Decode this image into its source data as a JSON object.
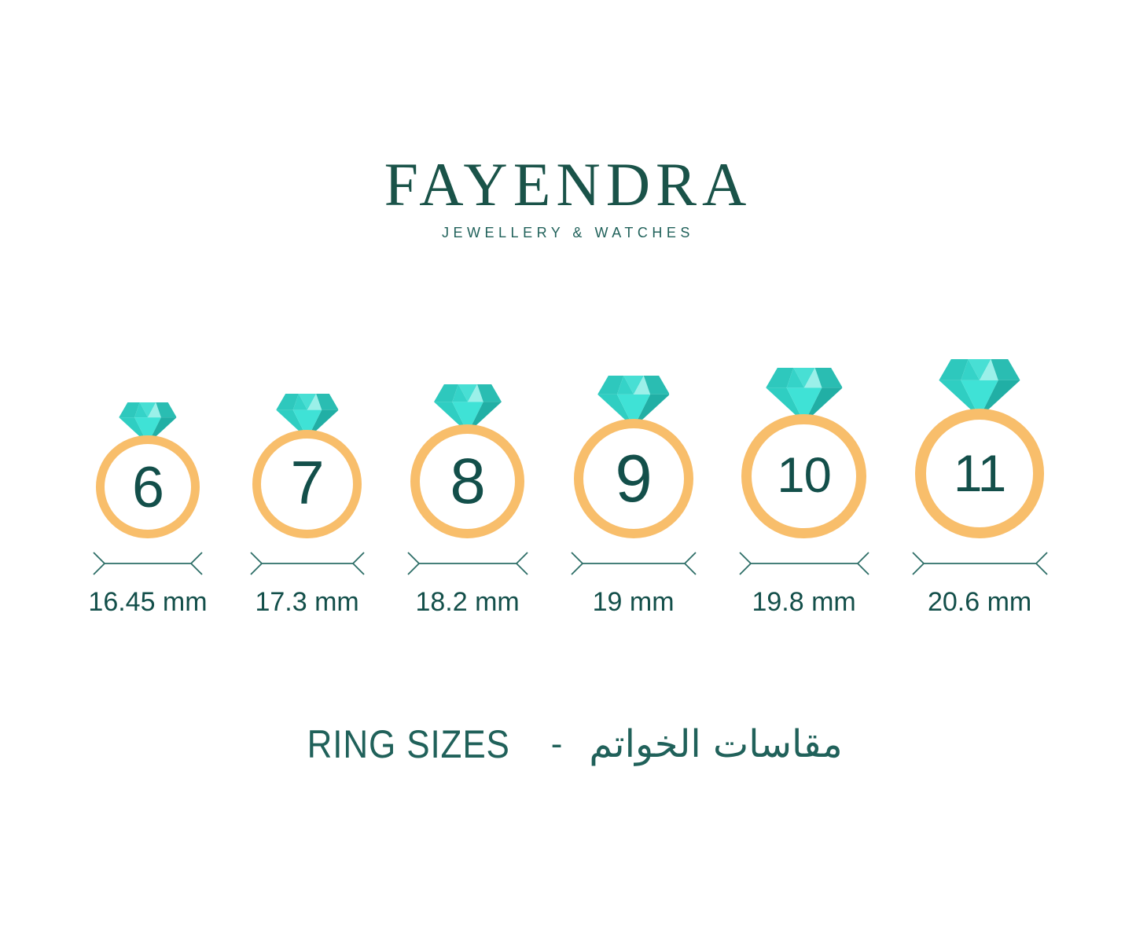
{
  "brand": {
    "name": "FAYENDRA",
    "tagline": "JEWELLERY & WATCHES"
  },
  "rings": [
    {
      "size": "6",
      "diameter_mm": 16.45,
      "diameter_label": "16.45 mm"
    },
    {
      "size": "7",
      "diameter_mm": 17.3,
      "diameter_label": "17.3 mm"
    },
    {
      "size": "8",
      "diameter_mm": 18.2,
      "diameter_label": "18.2 mm"
    },
    {
      "size": "9",
      "diameter_mm": 19.0,
      "diameter_label": "19 mm"
    },
    {
      "size": "10",
      "diameter_mm": 19.8,
      "diameter_label": "19.8 mm"
    },
    {
      "size": "11",
      "diameter_mm": 20.6,
      "diameter_label": "20.6 mm"
    }
  ],
  "footer": {
    "title_en": "RING SIZES",
    "separator": "-",
    "title_ar": "مقاسات الخواتم"
  },
  "colors": {
    "teal": "#1A5349",
    "teal_soft": "#20615A",
    "teal_dark": "#134F4A",
    "arrow": "#2D6E67",
    "band_gold": "#F8BE6B",
    "diamond_facets": [
      "#2EC8BD",
      "#48DFD4",
      "#35D3C8",
      "#9BF0E9",
      "#2ABDB2",
      "#2FCEC2",
      "#3FE2D6",
      "#21AFA5"
    ]
  }
}
